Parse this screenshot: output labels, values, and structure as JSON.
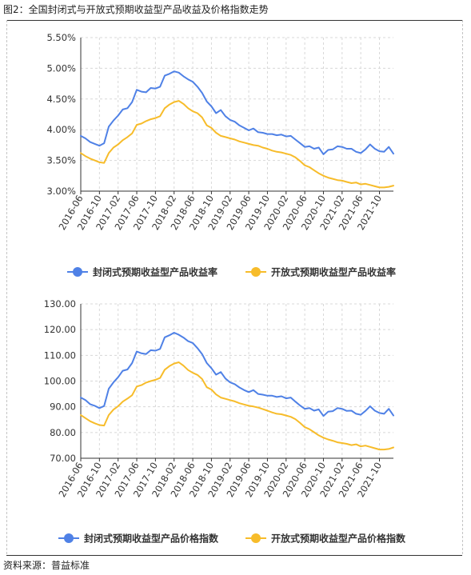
{
  "figure_title": "图2：全国封闭式与开放式预期收益型产品收益及价格指数走势",
  "source_note": "资料来源：普益标准",
  "colors": {
    "closed": "#4f81e6",
    "open": "#f7bc2a",
    "grid": "#d8d8d8",
    "axis": "#333333",
    "text": "#333333"
  },
  "chart_data": [
    {
      "type": "line",
      "title": "",
      "xlabel": "",
      "ylabel": "",
      "ylim": [
        3.0,
        5.5
      ],
      "y_ticks": [
        "3.00%",
        "3.50%",
        "4.00%",
        "4.50%",
        "5.00%",
        "5.50%"
      ],
      "x_ticks": [
        "2016-06",
        "2016-10",
        "2017-02",
        "2017-06",
        "2017-10",
        "2018-02",
        "2018-06",
        "2018-10",
        "2019-02",
        "2019-06",
        "2019-10",
        "2020-02",
        "2020-06",
        "2020-10",
        "2021-02",
        "2021-06",
        "2021-10"
      ],
      "grid": true,
      "legend_position": "bottom",
      "x_start": "2016-06",
      "x_end": "2021-12",
      "series": [
        {
          "name": "封闭式预期收益型产品收益率",
          "color": "#4f81e6",
          "values": [
            3.9,
            3.86,
            3.8,
            3.77,
            3.74,
            3.78,
            4.05,
            4.15,
            4.23,
            4.33,
            4.35,
            4.45,
            4.65,
            4.62,
            4.61,
            4.68,
            4.67,
            4.7,
            4.88,
            4.91,
            4.95,
            4.93,
            4.87,
            4.82,
            4.78,
            4.7,
            4.6,
            4.46,
            4.38,
            4.27,
            4.32,
            4.22,
            4.16,
            4.13,
            4.07,
            4.03,
            3.99,
            4.02,
            3.96,
            3.95,
            3.93,
            3.93,
            3.91,
            3.92,
            3.89,
            3.9,
            3.84,
            3.78,
            3.72,
            3.73,
            3.69,
            3.71,
            3.6,
            3.67,
            3.68,
            3.73,
            3.72,
            3.69,
            3.69,
            3.64,
            3.62,
            3.68,
            3.76,
            3.69,
            3.65,
            3.64,
            3.72,
            3.61
          ]
        },
        {
          "name": "开放式预期收益型产品收益率",
          "color": "#f7bc2a",
          "values": [
            3.62,
            3.57,
            3.53,
            3.5,
            3.47,
            3.46,
            3.62,
            3.71,
            3.76,
            3.83,
            3.88,
            3.94,
            4.08,
            4.1,
            4.14,
            4.17,
            4.19,
            4.22,
            4.35,
            4.41,
            4.45,
            4.47,
            4.42,
            4.35,
            4.3,
            4.27,
            4.2,
            4.07,
            4.03,
            3.95,
            3.9,
            3.88,
            3.86,
            3.84,
            3.81,
            3.79,
            3.77,
            3.75,
            3.74,
            3.71,
            3.69,
            3.66,
            3.64,
            3.63,
            3.61,
            3.59,
            3.55,
            3.49,
            3.42,
            3.39,
            3.34,
            3.29,
            3.25,
            3.22,
            3.2,
            3.18,
            3.17,
            3.15,
            3.13,
            3.14,
            3.11,
            3.12,
            3.1,
            3.08,
            3.06,
            3.06,
            3.07,
            3.09
          ]
        }
      ]
    },
    {
      "type": "line",
      "title": "",
      "xlabel": "",
      "ylabel": "",
      "ylim": [
        70,
        130
      ],
      "y_ticks": [
        "70.00",
        "80.00",
        "90.00",
        "100.00",
        "110.00",
        "120.00",
        "130.00"
      ],
      "x_ticks": [
        "2016-06",
        "2016-10",
        "2017-02",
        "2017-06",
        "2017-10",
        "2018-02",
        "2018-06",
        "2018-10",
        "2019-02",
        "2019-06",
        "2019-10",
        "2020-02",
        "2020-06",
        "2020-10",
        "2021-02",
        "2021-06",
        "2021-10"
      ],
      "grid": true,
      "legend_position": "bottom",
      "x_start": "2016-06",
      "x_end": "2021-12",
      "series": [
        {
          "name": "封闭式预期收益型产品价格指数",
          "color": "#4f81e6",
          "values": [
            93.6,
            92.6,
            91.0,
            90.4,
            89.5,
            90.3,
            97.0,
            99.5,
            101.5,
            104.0,
            104.5,
            107.0,
            111.5,
            110.8,
            110.5,
            112.0,
            111.8,
            112.5,
            117.0,
            117.8,
            118.8,
            118.0,
            116.9,
            115.5,
            114.8,
            112.8,
            110.5,
            107.0,
            105.0,
            102.5,
            103.5,
            101.0,
            99.5,
            98.8,
            97.5,
            96.5,
            95.7,
            96.5,
            95.0,
            94.7,
            94.3,
            94.3,
            93.8,
            94.1,
            93.3,
            93.6,
            92.0,
            90.5,
            89.2,
            89.5,
            88.5,
            89.0,
            86.4,
            88.1,
            88.3,
            89.5,
            89.2,
            88.4,
            88.5,
            87.3,
            86.9,
            88.4,
            90.2,
            88.5,
            87.6,
            87.3,
            89.2,
            86.6
          ]
        },
        {
          "name": "开放式预期收益型产品价格指数",
          "color": "#f7bc2a",
          "values": [
            86.8,
            85.6,
            84.4,
            83.6,
            82.9,
            82.7,
            86.8,
            88.9,
            90.2,
            92.0,
            93.2,
            94.5,
            97.9,
            98.4,
            99.4,
            100.0,
            100.5,
            101.2,
            104.4,
            105.8,
            106.8,
            107.3,
            106.0,
            104.3,
            103.2,
            102.4,
            100.8,
            97.6,
            96.7,
            94.8,
            93.6,
            93.1,
            92.6,
            92.1,
            91.4,
            90.9,
            90.4,
            90.1,
            89.7,
            89.1,
            88.5,
            87.8,
            87.3,
            87.1,
            86.6,
            86.1,
            85.2,
            83.7,
            82.1,
            81.3,
            80.1,
            78.9,
            78.0,
            77.3,
            76.8,
            76.2,
            75.9,
            75.6,
            75.1,
            75.4,
            74.6,
            74.9,
            74.4,
            73.9,
            73.4,
            73.4,
            73.6,
            74.2
          ]
        }
      ]
    }
  ]
}
